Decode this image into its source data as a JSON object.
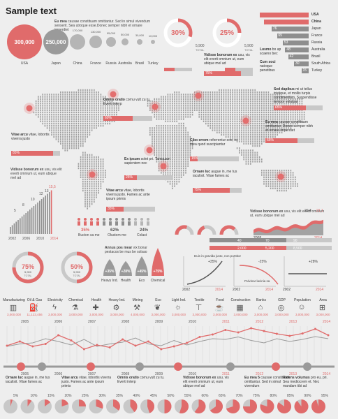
{
  "title": "Sample text",
  "intro_text": {
    "bold": "Eu mea",
    "rest": " causae constituam omittantur. Sed in simul vivendum senserit. Sea utroque esse.Donec semper nibh et ornare imperdiet"
  },
  "bubbles": [
    {
      "value": "300,000",
      "label": "USA",
      "color": "#e06b6b"
    },
    {
      "value": "250,000",
      "label": "Japan",
      "color": "#9a9a9a"
    },
    {
      "value": "170,000",
      "label": "China",
      "color": "#b5b5b5"
    },
    {
      "value": "130,000",
      "label": "France",
      "color": "#b5b5b5"
    },
    {
      "value": "95,000",
      "label": "Russia",
      "color": "#b5b5b5"
    },
    {
      "value": "50,000",
      "label": "Australia",
      "color": "#b5b5b5"
    },
    {
      "value": "30,000",
      "label": "Brasil",
      "color": "#b5b5b5"
    },
    {
      "value": "10,000",
      "label": "Turkey",
      "color": "#b5b5b5"
    }
  ],
  "donut_top": [
    {
      "pct": "30%",
      "value": "5,900",
      "unit": "TOTAL",
      "fraction": 0.3
    },
    {
      "pct": "25%",
      "value": "5,900",
      "unit": "TOTAL",
      "fraction": 0.25
    }
  ],
  "country_bars": {
    "rows": [
      {
        "num": "",
        "name": "USA",
        "len": 1.0,
        "highlight": true
      },
      {
        "num": "",
        "name": "China",
        "len": 0.92,
        "highlight": true
      },
      {
        "num": "76",
        "name": "Japan",
        "len": 0.76,
        "highlight": false
      },
      {
        "num": "65",
        "name": "France",
        "len": 0.65,
        "highlight": false
      },
      {
        "num": "53",
        "name": "Russia",
        "len": 0.53,
        "highlight": false
      },
      {
        "num": "48",
        "name": "Australia",
        "len": 0.48,
        "highlight": false
      },
      {
        "num": "42",
        "name": "Brasil",
        "len": 0.42,
        "highlight": false
      },
      {
        "num": "30",
        "name": "South Africa",
        "len": 0.3,
        "highlight": false
      },
      {
        "num": "15",
        "name": "Turkey",
        "len": 0.15,
        "highlight": false
      }
    ],
    "notes": [
      {
        "bold": "Lusmo",
        "rest": " bo ap scaeno bec"
      },
      {
        "bold": "Cum soci",
        "rest": " natoque penetibus"
      }
    ]
  },
  "map_callouts": [
    {
      "bold": "Vidisse bonorum ex",
      "rest": " usu, vis elit everti omnium ut, eum ubique mel ad",
      "pct": "75%"
    },
    {
      "bold": "Omnis oratio",
      "rest": " cornu vult zu tu. Everti interp",
      "pct": "60%"
    },
    {
      "bold": "Sed dapibus",
      "rest": " mi ut tellus tristique, et mollis turpis condimentum. Suspendisse tempor volutpat",
      "pct": "65%"
    },
    {
      "bold": "Vitae arcu",
      "rest": " vitae, lobortis viverra justo",
      "pct": "85%"
    },
    {
      "bold": "Cibo errem",
      "rest": " referrentur eos, ex mea quod suscipiantur",
      "pct": "15%"
    },
    {
      "bold": "Eu mea",
      "rest": " causae constituam omittantur. Donec semper nibh et ornare imperdiet",
      "pct": "65%"
    },
    {
      "bold": "Ex ipsum",
      "rest": " solet pri. Tamquam sapientem nec",
      "pct": "25%"
    },
    {
      "bold": "Vitae arcu",
      "rest": " vitae, lobortis viverra justo. Fames ac ante ipsum primis",
      "pct": "35%"
    },
    {
      "bold": "Ornare luc",
      "rest": " augue in, me tus iaculisit. Vitae fames ac",
      "pct": "75%"
    }
  ],
  "growth_chart": {
    "bold": "Vidisse bonorum ex",
    "rest": " usu, vis elit everti omnium ut, eum ubique mel ad",
    "labels": [
      "5",
      "8",
      "10",
      "12",
      "13",
      "15,5"
    ],
    "years": [
      "2002",
      "2006",
      "2010",
      "2014"
    ]
  },
  "people": {
    "pcts": [
      "35%",
      "62%",
      "24%"
    ],
    "labels": [
      "Bucton sa me",
      "Olustom me",
      "Colast"
    ]
  },
  "gauges": [
    {
      "fraction": 0.6
    },
    {
      "fraction": 0.4
    },
    {
      "fraction": 0.75
    }
  ],
  "area_chart": {
    "bold": "Vidisse bonorum ex",
    "rest": " usu, vis elit everti omnium ut, eum ubique mel ad",
    "values": [
      "20,4",
      "21,1"
    ],
    "years": [
      "2008",
      "2014"
    ]
  },
  "progress_rows": [
    {
      "labels": [
        "40",
        "70",
        "90"
      ],
      "color": "#c8c8c8"
    },
    {
      "labels": [
        "2,000",
        "5,200",
        "8,500"
      ],
      "color": "#e06b6b"
    }
  ],
  "donut_mid": [
    {
      "pct": "75%",
      "value": "5,900",
      "unit": "TOTAL",
      "fraction": 0.75
    },
    {
      "pct": "50%",
      "value": "5,900",
      "unit": "TOTAL",
      "fraction": 0.5
    }
  ],
  "drops": {
    "bold": "Annus pos mear",
    "rest": " vix bonar pestacos be mus be solsao",
    "items": [
      {
        "pct": "+35%",
        "label": "Heavy Ind.",
        "h": 0.35
      },
      {
        "pct": "+28%",
        "label": "Health",
        "h": 0.28
      },
      {
        "pct": "+45%",
        "label": "Eco",
        "h": 0.45
      },
      {
        "pct": "+75%",
        "label": "Chemical",
        "h": 0.75
      }
    ]
  },
  "curves": [
    {
      "note": "Duis in gravida justo, non porttitor",
      "label": "+35%",
      "years": [
        "2002",
        "2014"
      ]
    },
    {
      "note": "Pulvinar lacinia sa",
      "label": "-25%",
      "years": [
        "2002",
        "2014"
      ]
    },
    {
      "note": "",
      "label": "+28%",
      "years": [
        "2002",
        "2014"
      ]
    }
  ],
  "sectors": [
    {
      "name": "Manufacturing",
      "value": "3,000,000",
      "icon": "factory-icon",
      "glyph": "▥"
    },
    {
      "name": "Oil & Gas",
      "value": "11,123,456",
      "icon": "oil-icon",
      "glyph": "⛽"
    },
    {
      "name": "Electricity",
      "value": "3,000,000",
      "icon": "lightning-icon",
      "glyph": "ϟ"
    },
    {
      "name": "Chemical",
      "value": "3,000,000",
      "icon": "flask-icon",
      "glyph": "⚗"
    },
    {
      "name": "Health",
      "value": "3,000,000",
      "icon": "health-icon",
      "glyph": "✚"
    },
    {
      "name": "Heavy Ind.",
      "value": "3,000,000",
      "icon": "crane-icon",
      "glyph": "⚙"
    },
    {
      "name": "Mining",
      "value": "4,000,000",
      "icon": "mining-icon",
      "glyph": "⚒"
    },
    {
      "name": "Eco",
      "value": "3,000,000",
      "icon": "leaf-icon",
      "glyph": "❦"
    },
    {
      "name": "Light Ind.",
      "value": "3,000,000",
      "icon": "lightbulb-icon",
      "glyph": "☼"
    },
    {
      "name": "Textile",
      "value": "3,000,000",
      "icon": "shirt-icon",
      "glyph": "⊤"
    },
    {
      "name": "Food",
      "value": "3,000,000",
      "icon": "food-icon",
      "glyph": "☕"
    },
    {
      "name": "Construction",
      "value": "3,000,000",
      "icon": "construction-icon",
      "glyph": "▦"
    },
    {
      "name": "Banks",
      "value": "3,000,000",
      "icon": "bank-icon",
      "glyph": "⌂"
    },
    {
      "name": "GDP",
      "value": "3,000,000",
      "icon": "gdp-icon",
      "glyph": "◎"
    },
    {
      "name": "Population",
      "value": "3,000,000",
      "icon": "population-icon",
      "glyph": "☺"
    },
    {
      "name": "Area",
      "value": "3,000,000",
      "icon": "area-icon",
      "glyph": "⊞"
    }
  ],
  "timeline_years_top": [
    "2005",
    "2006",
    "2007",
    "2008",
    "2009",
    "2010",
    "2011",
    "2012",
    "2013",
    "2014"
  ],
  "timeline_years_bottom": [
    "2005",
    "2006",
    "2007",
    "2008",
    "2009",
    "2010",
    "2011",
    "2012",
    "2013",
    "2014"
  ],
  "chart_data": {
    "type": "line",
    "series": [
      {
        "values": [
          40,
          52,
          38,
          45,
          70,
          55,
          30,
          42,
          35,
          58,
          40,
          52,
          30,
          38,
          48,
          65,
          72,
          85,
          78,
          90,
          82,
          74,
          68,
          75,
          88,
          70
        ]
      },
      {
        "values": [
          38,
          45,
          48,
          60,
          52,
          42,
          58,
          38,
          45,
          50,
          62,
          45,
          40,
          55,
          42,
          52,
          60,
          58,
          65,
          55,
          48,
          60,
          52,
          58,
          66,
          60
        ]
      }
    ],
    "ylim": [
      0,
      100
    ]
  },
  "timeline_notes": [
    {
      "bold": "Ornare luc",
      "rest": " augue in, me tus iaculisit. Vitae fames ac"
    },
    {
      "bold": "Vitae arcu",
      "rest": " vitae, lobortis viverra justo. Fames ac ante ipsum primis"
    },
    {
      "bold": "Omnis oratio",
      "rest": " cornu vult zu tu. Everti interp"
    },
    {
      "bold": "Vidisse bonorum ex",
      "rest": " usu, vis elit everti omnium ut, eum ubique mel ad"
    },
    {
      "bold": "Eu mea 5",
      "rest": " causae constituam omittantur. Sed in simul vivendum"
    },
    {
      "bold": "Ridens volumus",
      "rest": " pro eu, pri. Sea mediocrem et. Nec mandam tibi ad"
    }
  ],
  "pies": [
    "5%",
    "10%",
    "15%",
    "20%",
    "25%",
    "30%",
    "35%",
    "40%",
    "45%",
    "50%",
    "55%",
    "60%",
    "65%",
    "70%",
    "75%",
    "80%",
    "85%",
    "90%",
    "95%"
  ]
}
